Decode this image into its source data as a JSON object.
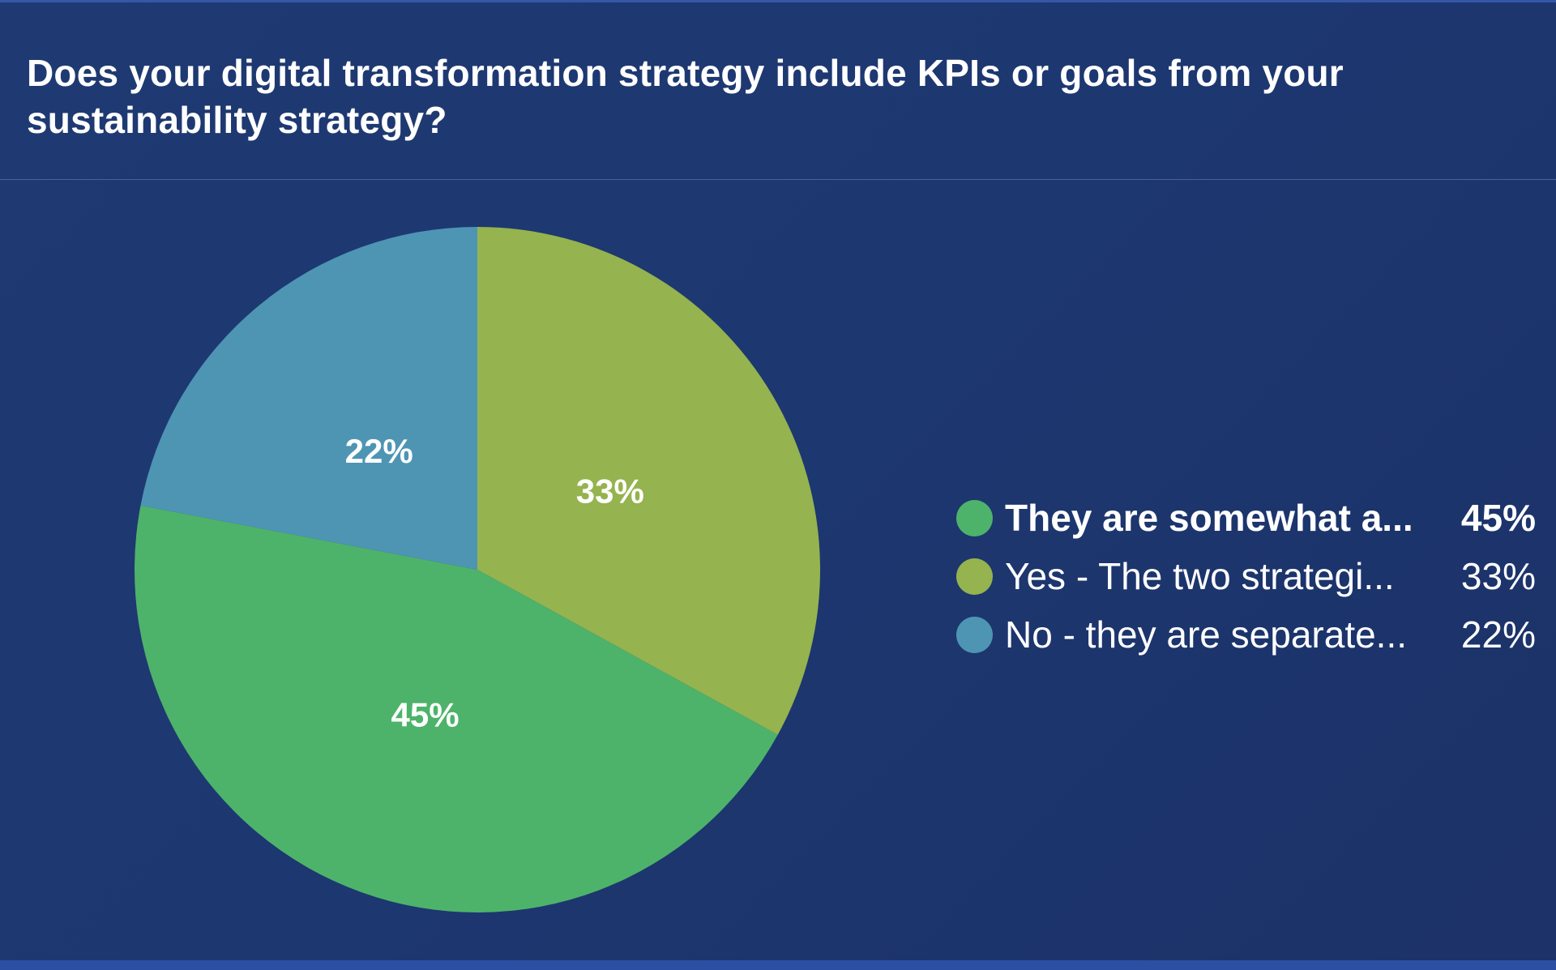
{
  "title": "Does your digital transformation strategy include KPIs or goals from your sustainability strategy?",
  "chart_data": {
    "type": "pie",
    "title": "Does your digital transformation strategy include KPIs or goals from your sustainability strategy?",
    "start_angle_deg": 0,
    "direction": "clockwise",
    "slices": [
      {
        "label": "Yes - The two strategi...",
        "value": 33,
        "display": "33%",
        "color": "#95b34e"
      },
      {
        "label": "They are somewhat a...",
        "value": 45,
        "display": "45%",
        "color": "#4db36a"
      },
      {
        "label": "No - they are separate...",
        "value": 22,
        "display": "22%",
        "color": "#4e95b4"
      }
    ],
    "legend": [
      {
        "label": "They are somewhat a...",
        "value": "45%",
        "color": "#4db36a",
        "emphasized": true
      },
      {
        "label": "Yes - The two strategi...",
        "value": "33%",
        "color": "#95b34e",
        "emphasized": false
      },
      {
        "label": "No - they are separate...",
        "value": "22%",
        "color": "#4e95b4",
        "emphasized": false
      }
    ],
    "legend_position": "right"
  }
}
